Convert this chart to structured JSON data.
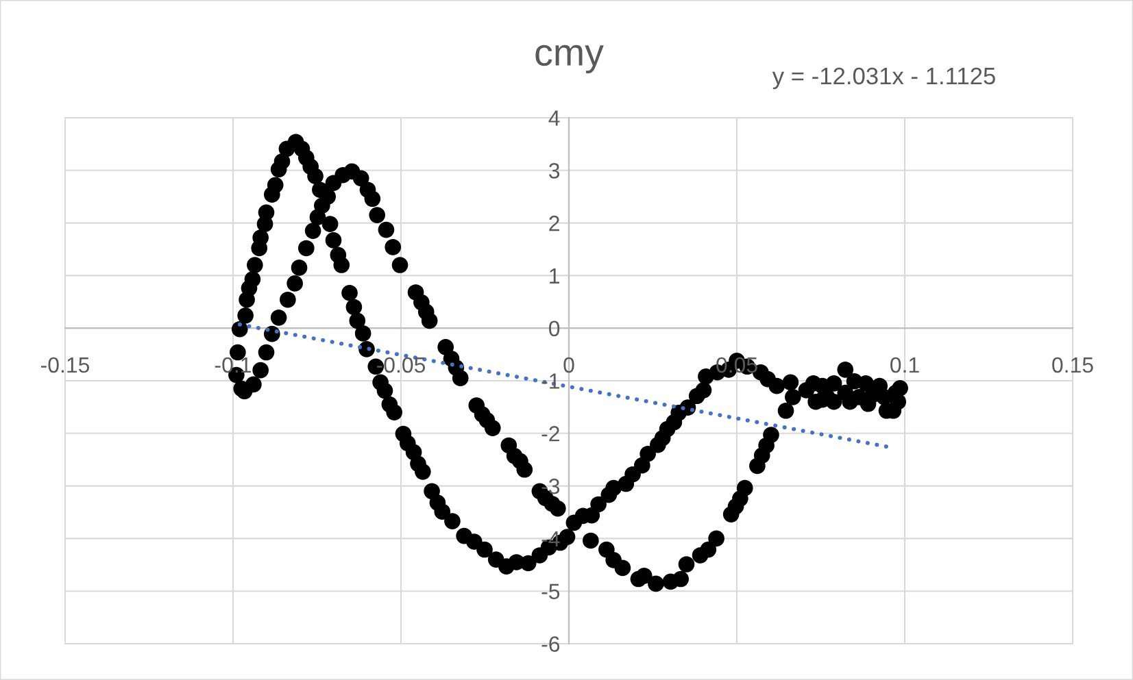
{
  "chart_data": {
    "type": "scatter",
    "title": "cmy",
    "annotations": [
      "y = -12.031x - 1.1125"
    ],
    "xlim": [
      -0.15,
      0.15
    ],
    "ylim": [
      -6,
      4
    ],
    "xticks": [
      -0.15,
      -0.1,
      -0.05,
      0,
      0.05,
      0.1,
      0.15
    ],
    "yticks": [
      -6,
      -5,
      -4,
      -3,
      -2,
      -1,
      0,
      1,
      2,
      3,
      4
    ],
    "grid": true,
    "series": [
      {
        "color": "#000000",
        "marker": "circle",
        "x": [
          -0.099,
          -0.0986,
          -0.098,
          -0.0963,
          -0.0959,
          -0.0952,
          -0.0942,
          -0.0935,
          -0.0922,
          -0.0918,
          -0.0905,
          -0.0901,
          -0.0884,
          -0.0874,
          -0.0864,
          -0.0854,
          -0.084,
          -0.0813,
          -0.0795,
          -0.0782,
          -0.0769,
          -0.0755,
          -0.0741,
          -0.0711,
          -0.0701,
          -0.0687,
          -0.0677,
          -0.0653,
          -0.064,
          -0.063,
          -0.0613,
          -0.0602,
          -0.0575,
          -0.0561,
          -0.0548,
          -0.0534,
          -0.052,
          -0.0493,
          -0.048,
          -0.0462,
          -0.0449,
          -0.0435,
          -0.0408,
          -0.0391,
          -0.0377,
          -0.0347,
          -0.0312,
          -0.0282,
          -0.0251,
          -0.0217,
          -0.0186,
          -0.0156,
          -0.0121,
          -0.0087,
          -0.006,
          -0.0026,
          -0.0005,
          0.0015,
          0.0042,
          0.0068,
          0.0088,
          0.0119,
          0.0133,
          0.017,
          0.019,
          0.0218,
          0.0235,
          0.0265,
          0.0279,
          0.0293,
          0.0313,
          0.0327,
          0.0354,
          0.0381,
          0.0401,
          0.0408,
          0.0442,
          0.0476,
          0.05,
          0.0531,
          0.0571,
          0.0592,
          0.0619,
          0.066,
          0.0646,
          0.0667,
          0.0707,
          0.0728,
          0.0755,
          0.0769,
          0.0789,
          0.0823,
          0.0823,
          0.085,
          0.0864,
          0.0884,
          0.0905,
          0.0925,
          0.0939,
          0.0946,
          0.0966,
          0.0973,
          0.098,
          0.0986,
          0.0755,
          0.0789,
          0.0837,
          0.0891,
          0.0735,
          0.0602,
          0.0588,
          0.0575,
          0.0561,
          0.0524,
          0.051,
          0.0497,
          0.0483,
          0.0439,
          0.0415,
          0.0391,
          0.035,
          0.0333,
          0.0303,
          0.0259,
          0.0224,
          0.0207,
          0.016,
          0.0133,
          0.0112,
          0.0065,
          -0.0033,
          -0.005,
          -0.007,
          -0.0087,
          -0.0132,
          -0.0145,
          -0.0162,
          -0.0179,
          -0.0227,
          -0.0244,
          -0.0258,
          -0.0275,
          -0.0323,
          -0.0336,
          -0.035,
          -0.0367,
          -0.0415,
          -0.0425,
          -0.0439,
          -0.0456,
          -0.0503,
          -0.0524,
          -0.0544,
          -0.0571,
          -0.0585,
          -0.0599,
          -0.0619,
          -0.0646,
          -0.0673,
          -0.0701,
          -0.0718,
          -0.0735,
          -0.0748,
          -0.0762,
          -0.0782,
          -0.0803,
          -0.0816,
          -0.0837,
          -0.0864,
          -0.0884,
          -0.0901,
          -0.0918,
          -0.0939,
          -0.0966,
          -0.0975
        ],
        "values": [
          -0.89,
          -0.46,
          -0.02,
          0.24,
          0.54,
          0.76,
          0.93,
          1.2,
          1.52,
          1.72,
          1.98,
          2.2,
          2.54,
          2.72,
          3.02,
          3.17,
          3.41,
          3.54,
          3.41,
          3.24,
          3.07,
          2.89,
          2.63,
          1.98,
          1.67,
          1.39,
          1.2,
          0.67,
          0.4,
          0.14,
          -0.1,
          -0.4,
          -0.73,
          -1.03,
          -1.19,
          -1.45,
          -1.6,
          -2.01,
          -2.19,
          -2.36,
          -2.58,
          -2.73,
          -3.1,
          -3.32,
          -3.49,
          -3.67,
          -3.95,
          -4.06,
          -4.21,
          -4.4,
          -4.53,
          -4.45,
          -4.47,
          -4.32,
          -4.17,
          -4.08,
          -3.97,
          -3.7,
          -3.57,
          -3.56,
          -3.35,
          -3.17,
          -3.04,
          -2.96,
          -2.78,
          -2.61,
          -2.39,
          -2.22,
          -2.09,
          -1.92,
          -1.79,
          -1.61,
          -1.51,
          -1.29,
          -1.18,
          -0.92,
          -0.84,
          -0.79,
          -0.62,
          -0.73,
          -0.84,
          -0.97,
          -1.1,
          -1.03,
          -1.57,
          -1.31,
          -1.18,
          -1.05,
          -1.1,
          -1.31,
          -1.05,
          -0.79,
          -1.23,
          -1.01,
          -1.31,
          -1.05,
          -1.27,
          -1.1,
          -1.31,
          -1.57,
          -1.57,
          -1.23,
          -1.4,
          -1.14,
          -1.36,
          -1.4,
          -1.4,
          -1.44,
          -1.4,
          -2.03,
          -2.23,
          -2.42,
          -2.62,
          -3.04,
          -3.24,
          -3.39,
          -3.54,
          -4.0,
          -4.21,
          -4.32,
          -4.49,
          -4.77,
          -4.82,
          -4.86,
          -4.71,
          -4.77,
          -4.56,
          -4.41,
          -4.21,
          -4.04,
          -3.43,
          -3.34,
          -3.23,
          -3.1,
          -2.69,
          -2.53,
          -2.43,
          -2.23,
          -1.9,
          -1.75,
          -1.64,
          -1.47,
          -0.95,
          -0.75,
          -0.58,
          -0.36,
          0.14,
          0.31,
          0.49,
          0.68,
          1.2,
          1.54,
          1.87,
          2.15,
          2.46,
          2.63,
          2.85,
          2.98,
          2.91,
          2.76,
          2.5,
          2.33,
          2.11,
          1.85,
          1.52,
          1.15,
          0.85,
          0.54,
          0.2,
          -0.11,
          -0.46,
          -0.8,
          -1.07,
          -1.2,
          -1.15
        ]
      },
      {
        "type": "line",
        "color": "#4472c4",
        "marker": "none",
        "line_style": "dotted",
        "x": [
          -0.098,
          0.096
        ],
        "values": [
          0.07,
          -2.27
        ]
      }
    ]
  }
}
